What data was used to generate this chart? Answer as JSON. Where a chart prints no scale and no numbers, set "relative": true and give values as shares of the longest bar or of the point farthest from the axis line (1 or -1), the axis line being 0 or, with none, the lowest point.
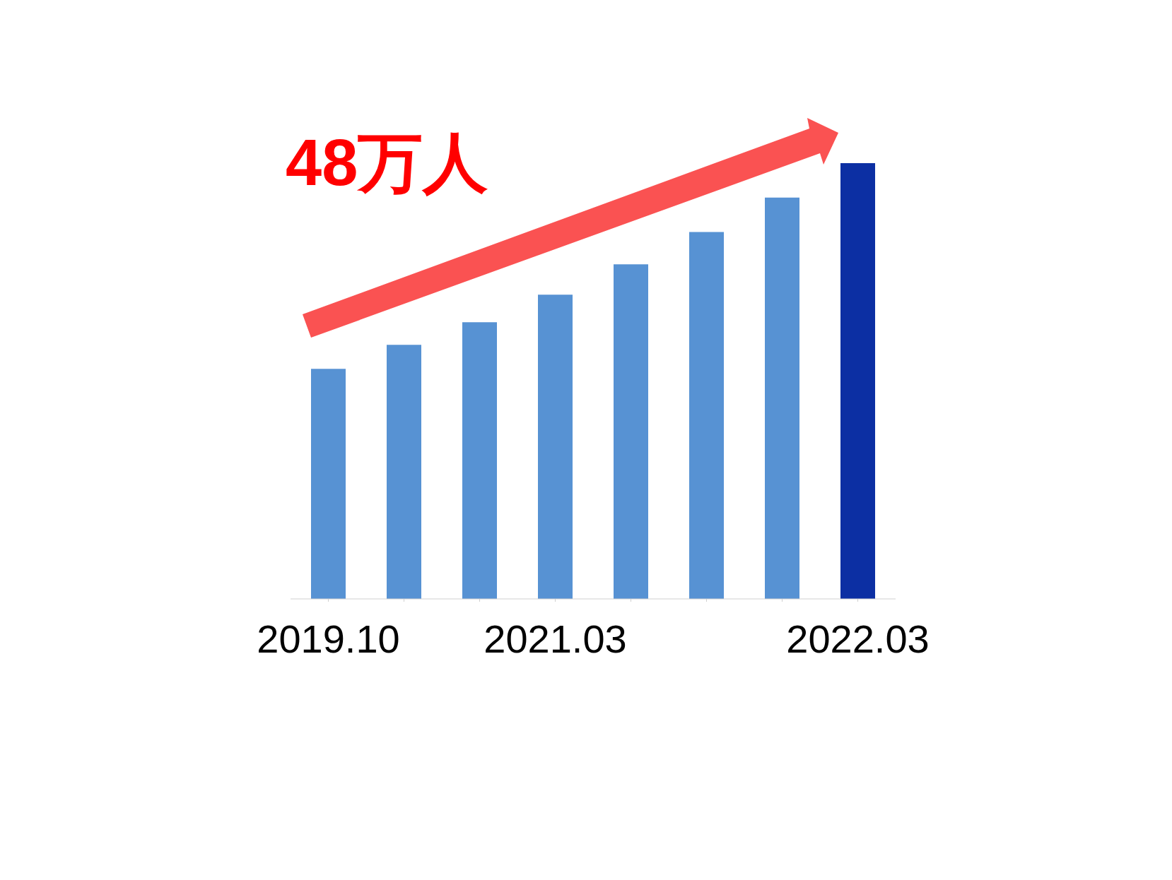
{
  "chart_data": {
    "type": "bar",
    "relative": true,
    "categories": [
      "2019.10",
      null,
      null,
      "2021.03",
      null,
      null,
      null,
      "2022.03"
    ],
    "values": [
      0.528,
      0.583,
      0.635,
      0.698,
      0.768,
      0.842,
      0.921,
      1
    ],
    "colors": [
      "#5792d3",
      "#5792d3",
      "#5792d3",
      "#5792d3",
      "#5792d3",
      "#5792d3",
      "#5792d3",
      "#0c2fa3"
    ],
    "annotations": [
      "48万人"
    ]
  }
}
